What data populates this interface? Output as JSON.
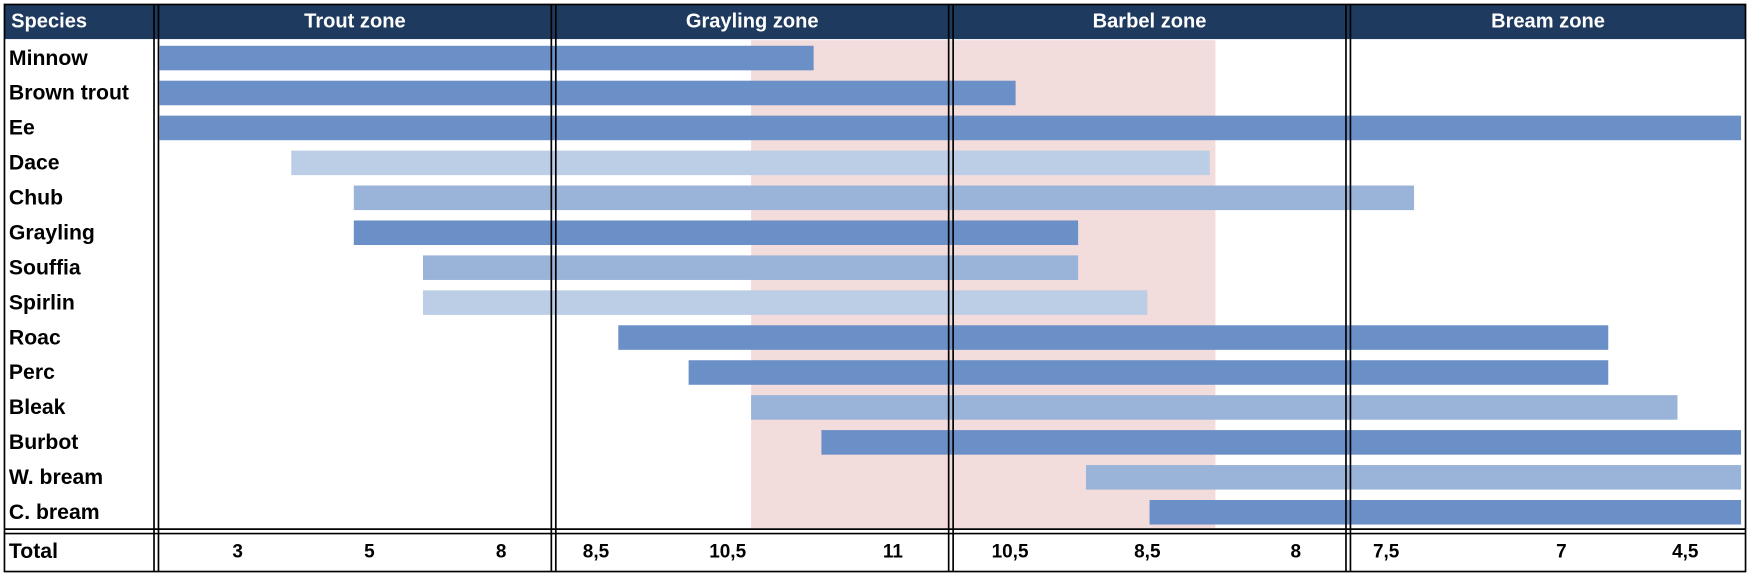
{
  "header": {
    "species": "Species",
    "zones": [
      "Trout zone",
      "Grayling zone",
      "Barbel zone",
      "Bream zone"
    ]
  },
  "species": [
    "Minnow",
    "Brown trout",
    "Ee",
    "Dace",
    "Chub",
    "Grayling",
    "Souffia",
    "Spirlin",
    "Roac",
    "Perc",
    "Bleak",
    "Burbot",
    "W. bream",
    "C. bream"
  ],
  "total": {
    "label": "Total",
    "values": [
      "3",
      "5",
      "8",
      "8,5",
      "10,5",
      "11",
      "10,5",
      "8,5",
      "8",
      "7,5",
      "7",
      "4,5"
    ]
  }
}
